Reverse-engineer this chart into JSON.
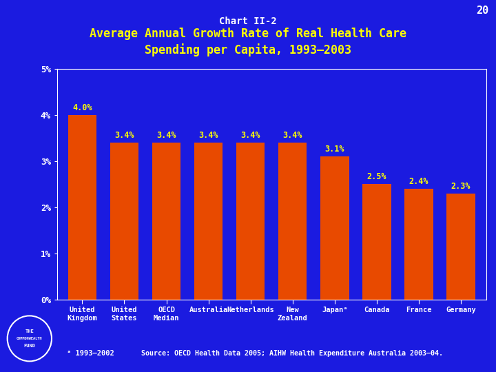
{
  "title_line1": "Chart II-2",
  "title_line2": "Average Annual Growth Rate of Real Health Care\nSpending per Capita, 1993–2003",
  "page_number": "20",
  "categories": [
    "United\nKingdom",
    "United\nStates",
    "OECD\nMedian",
    "Australia",
    "Netherlands",
    "New\nZealand",
    "Japan",
    "Canada",
    "France",
    "Germany"
  ],
  "values": [
    4.0,
    3.4,
    3.4,
    3.4,
    3.4,
    3.4,
    3.1,
    2.5,
    2.4,
    2.3
  ],
  "value_labels": [
    "4.0%",
    "3.4%",
    "3.4%",
    "3.4%",
    "3.4%",
    "3.4%",
    "3.1%",
    "2.5%",
    "2.4%",
    "2.3%"
  ],
  "bar_color": "#E84A00",
  "background_color": "#1B1BE0",
  "title_color1": "#FFFFFF",
  "title_color2": "#FFFF00",
  "tick_label_color": "#FFFFFF",
  "value_label_color": "#FFFF00",
  "ylim": [
    0,
    5
  ],
  "yticks": [
    0,
    1,
    2,
    3,
    4,
    5
  ],
  "ytick_labels": [
    "0%",
    "1%",
    "2%",
    "3%",
    "4%",
    "5%"
  ],
  "footnote": "ᵃ 1993–2002",
  "source": "Source: OECD Health Data 2005; AIHW Health Expenditure Australia 2003–04."
}
